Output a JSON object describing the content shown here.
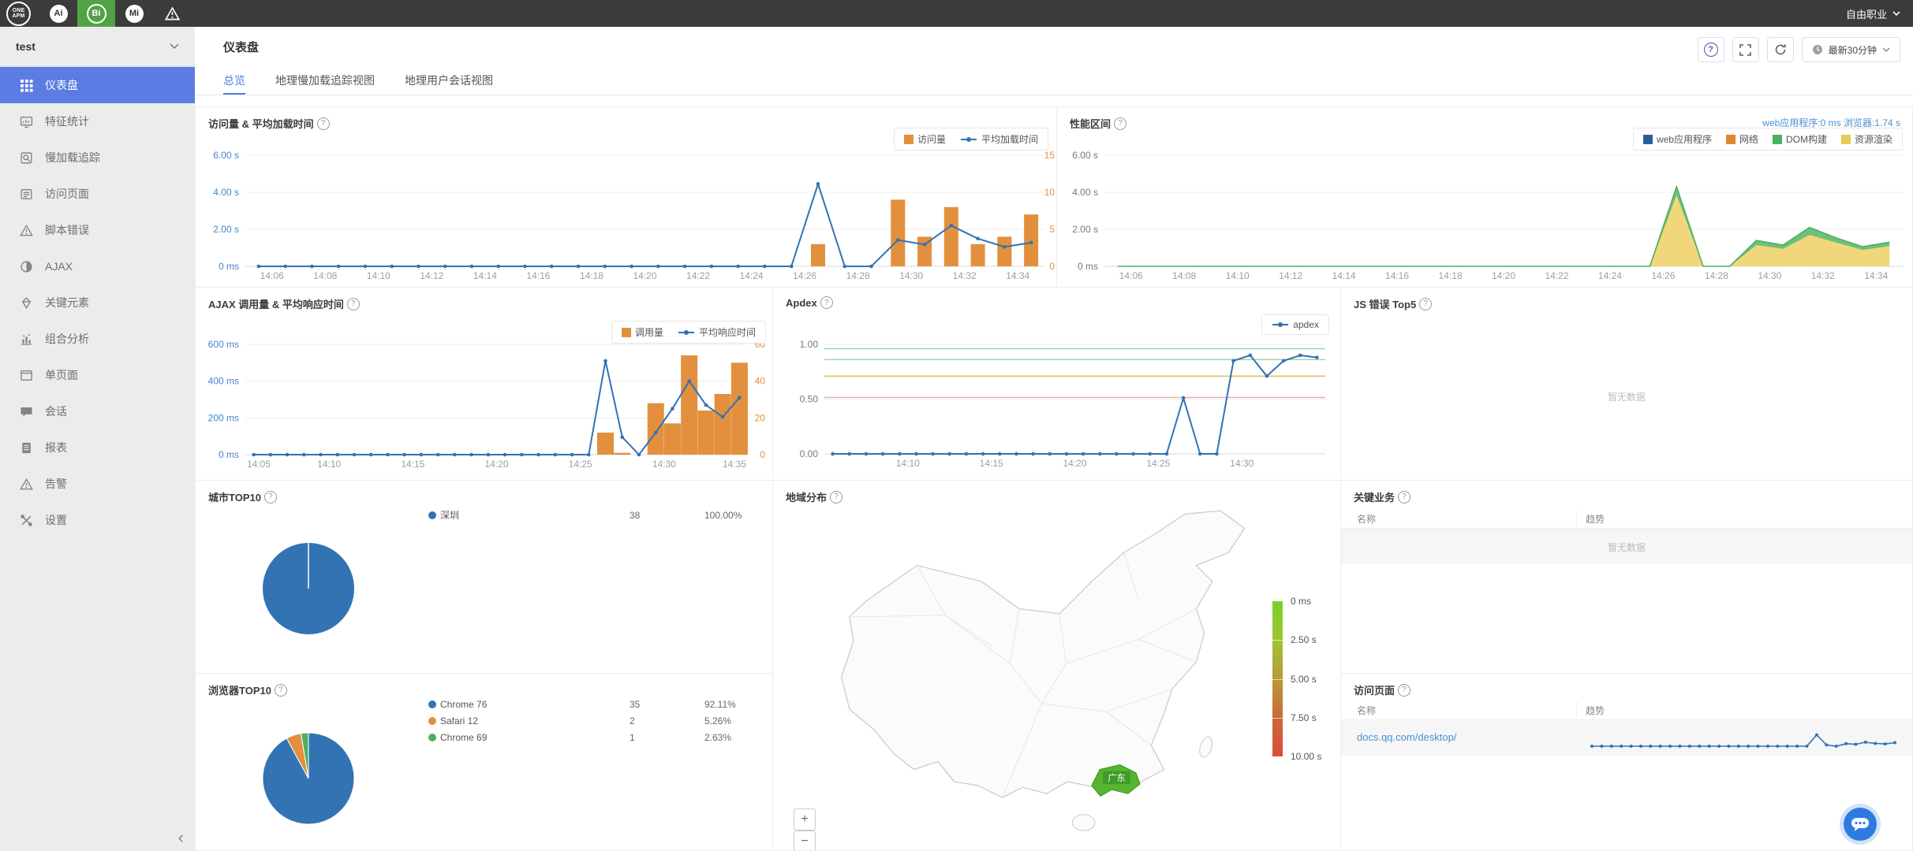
{
  "topbar": {
    "logo": "ONE APM",
    "apps": [
      {
        "id": "ai",
        "label": "Ai",
        "active": false
      },
      {
        "id": "bi",
        "label": "Bi",
        "active": true
      },
      {
        "id": "mi",
        "label": "Mi",
        "active": false
      },
      {
        "id": "alert",
        "label": "",
        "icon": "warning",
        "active": false
      }
    ],
    "account": {
      "label": "自由职业"
    }
  },
  "sidebar": {
    "project": "test",
    "items": [
      {
        "icon": "grid",
        "label": "仪表盘",
        "active": true
      },
      {
        "icon": "stats",
        "label": "特征统计",
        "active": false
      },
      {
        "icon": "search-doc",
        "label": "慢加载追踪",
        "active": false
      },
      {
        "icon": "list",
        "label": "访问页面",
        "active": false
      },
      {
        "icon": "warning",
        "label": "脚本错误",
        "active": false
      },
      {
        "icon": "half-circle",
        "label": "AJAX",
        "active": false
      },
      {
        "icon": "gem",
        "label": "关键元素",
        "active": false
      },
      {
        "icon": "combo",
        "label": "组合分析",
        "active": false
      },
      {
        "icon": "window",
        "label": "单页面",
        "active": false
      },
      {
        "icon": "chat",
        "label": "会话",
        "active": false
      },
      {
        "icon": "report",
        "label": "报表",
        "active": false
      },
      {
        "icon": "warning",
        "label": "告警",
        "active": false
      },
      {
        "icon": "tools",
        "label": "设置",
        "active": false
      }
    ]
  },
  "header": {
    "title": "仪表盘",
    "toolbar": {
      "help": "?",
      "time_range": "最新30分钟"
    }
  },
  "tabs": [
    {
      "label": "总览",
      "active": true
    },
    {
      "label": "地理慢加载追踪视图",
      "active": false
    },
    {
      "label": "地理用户会话视图",
      "active": false
    }
  ],
  "panels": {
    "visits": {
      "title": "访问量 & 平均加载时间",
      "type": "bar+line",
      "legend": [
        {
          "label": "访问量",
          "type": "bar",
          "color": "#e2903d"
        },
        {
          "label": "平均加载时间",
          "type": "line",
          "color": "#3372b5"
        }
      ],
      "left_ticks": [
        "6.00 s",
        "4.00 s",
        "2.00 s",
        "0 ms"
      ],
      "right_ticks": [
        "15",
        "10",
        "5",
        "0"
      ],
      "left_max": 6,
      "right_max": 15,
      "x_labels": [
        "14:06",
        "14:08",
        "14:10",
        "14:12",
        "14:14",
        "14:16",
        "14:18",
        "14:20",
        "14:22",
        "14:24",
        "14:26",
        "14:28",
        "14:30",
        "14:32",
        "14:34"
      ],
      "line_seconds": [
        0,
        0,
        0,
        0,
        0,
        0,
        0,
        0,
        0,
        0,
        0,
        0,
        0,
        0,
        0,
        0,
        0,
        0,
        0,
        0,
        0,
        4.45,
        0,
        0,
        1.42,
        1.18,
        2.2,
        1.5,
        1.05,
        1.28
      ],
      "bar_counts": [
        0,
        0,
        0,
        0,
        0,
        0,
        0,
        0,
        0,
        0,
        0,
        0,
        0,
        0,
        0,
        0,
        0,
        0,
        0,
        0,
        0,
        3,
        0,
        0,
        9,
        4,
        8,
        3,
        4,
        7
      ]
    },
    "perf": {
      "title": "性能区间",
      "type": "stacked-area",
      "stat": "web应用程序:0 ms 浏览器:1.74 s",
      "legend": [
        {
          "label": "web应用程序",
          "color": "#2b5f97"
        },
        {
          "label": "网络",
          "color": "#e2852f"
        },
        {
          "label": "DOM构建",
          "color": "#4db05f"
        },
        {
          "label": "资源渲染",
          "color": "#e9c957"
        }
      ],
      "left_ticks": [
        "6.00 s",
        "4.00 s",
        "2.00 s",
        "0 ms"
      ],
      "left_max": 6,
      "x_labels": [
        "14:06",
        "14:08",
        "14:10",
        "14:12",
        "14:14",
        "14:16",
        "14:18",
        "14:20",
        "14:22",
        "14:24",
        "14:26",
        "14:28",
        "14:30",
        "14:32",
        "14:34"
      ],
      "render_seconds": [
        0,
        0,
        0,
        0,
        0,
        0,
        0,
        0,
        0,
        0,
        0,
        0,
        0,
        0,
        0,
        0,
        0,
        0,
        0,
        0,
        0,
        3.85,
        0,
        0,
        1.15,
        0.95,
        1.7,
        1.28,
        0.88,
        1.1
      ],
      "dom_seconds": [
        0,
        0,
        0,
        0,
        0,
        0,
        0,
        0,
        0,
        0,
        0,
        0,
        0,
        0,
        0,
        0,
        0,
        0,
        0,
        0,
        0,
        0.45,
        0,
        0,
        0.25,
        0.2,
        0.4,
        0.25,
        0.18,
        0.2
      ]
    },
    "ajax": {
      "title": "AJAX 调用量 & 平均响应时间",
      "type": "bar+line",
      "legend": [
        {
          "label": "调用量",
          "type": "bar",
          "color": "#e2903d"
        },
        {
          "label": "平均响应时间",
          "type": "line",
          "color": "#3372b5"
        }
      ],
      "left_ticks": [
        "600 ms",
        "400 ms",
        "200 ms",
        "0 ms"
      ],
      "right_ticks": [
        "60",
        "40",
        "20",
        "0"
      ],
      "left_max": 600,
      "right_max": 60,
      "x_labels": [
        "14:05",
        "14:10",
        "14:15",
        "14:20",
        "14:25",
        "14:30",
        "14:35"
      ],
      "line_ms": [
        0,
        0,
        0,
        0,
        0,
        0,
        0,
        0,
        0,
        0,
        0,
        0,
        0,
        0,
        0,
        0,
        0,
        0,
        0,
        0,
        0,
        510,
        95,
        0,
        120,
        250,
        400,
        270,
        205,
        310
      ],
      "bar_counts": [
        0,
        0,
        0,
        0,
        0,
        0,
        0,
        0,
        0,
        0,
        0,
        0,
        0,
        0,
        0,
        0,
        0,
        0,
        0,
        0,
        0,
        12,
        1,
        0,
        28,
        17,
        54,
        24,
        33,
        50
      ]
    },
    "apdex": {
      "title": "Apdex",
      "type": "line",
      "legend": [
        {
          "label": "apdex",
          "type": "line",
          "color": "#3372b5"
        }
      ],
      "y_ticks": [
        "1.00",
        "0.50",
        "0.00"
      ],
      "y_max": 1,
      "x_labels": [
        "14:10",
        "14:15",
        "14:20",
        "14:25",
        "14:30"
      ],
      "ref_lines": [
        {
          "value": 0.96,
          "color": "#86d3d0"
        },
        {
          "value": 0.86,
          "color": "#9ed49e"
        },
        {
          "value": 0.71,
          "color": "#d8b94e"
        },
        {
          "value": 0.515,
          "color": "#ecabab"
        }
      ],
      "values": [
        0,
        0,
        0,
        0,
        0,
        0,
        0,
        0,
        0,
        0,
        0,
        0,
        0,
        0,
        0,
        0,
        0,
        0,
        0,
        0,
        0,
        0.51,
        0,
        0,
        0.85,
        0.9,
        0.71,
        0.85,
        0.9,
        0.88
      ]
    },
    "js_errors": {
      "title": "JS 错误 Top5",
      "empty": "暂无数据"
    },
    "city": {
      "title": "城市TOP10",
      "type": "pie",
      "rows": [
        {
          "name": "深圳",
          "value": "38",
          "pct": "100.00%",
          "color": "#3273b4"
        }
      ]
    },
    "geo": {
      "title": "地域分布",
      "province_label": "广东",
      "scale_labels": [
        "0 ms",
        "2.50 s",
        "5.00 s",
        "7.50 s",
        "10.00 s"
      ],
      "zoom_in": "+",
      "zoom_out": "−"
    },
    "key_business": {
      "title": "关键业务",
      "columns": [
        "名称",
        "趋势"
      ],
      "empty": "暂无数据"
    },
    "browser": {
      "title": "浏览器TOP10",
      "type": "pie",
      "rows": [
        {
          "name": "Chrome 76",
          "value": "35",
          "pct": "92.11%",
          "color": "#3273b4"
        },
        {
          "name": "Safari 12",
          "value": "2",
          "pct": "5.26%",
          "color": "#e2903d"
        },
        {
          "name": "Chrome 69",
          "value": "1",
          "pct": "2.63%",
          "color": "#4db05f"
        }
      ]
    },
    "pages": {
      "title": "访问页面",
      "columns": [
        "名称",
        "趋势"
      ],
      "rows": [
        {
          "name": "docs.qq.com/desktop/",
          "trend": [
            0,
            0,
            0,
            0,
            0,
            0,
            0,
            0,
            0,
            0,
            0,
            0,
            0,
            0,
            0,
            0,
            0,
            0,
            0,
            0,
            0,
            0,
            0,
            0.9,
            0.1,
            0,
            0.2,
            0.15,
            0.32,
            0.22,
            0.18,
            0.28
          ]
        }
      ]
    }
  }
}
